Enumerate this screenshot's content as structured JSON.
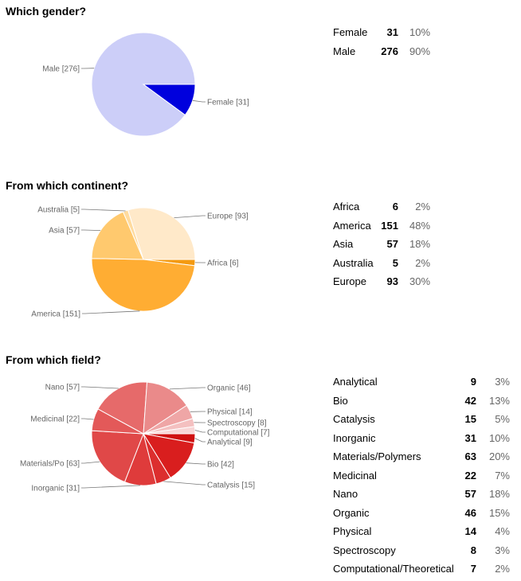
{
  "sections": [
    {
      "question": "Which gender?",
      "rows": [
        {
          "label": "Female",
          "count": "31",
          "pct": "10%"
        },
        {
          "label": "Male",
          "count": "276",
          "pct": "90%"
        }
      ]
    },
    {
      "question": "From which continent?",
      "rows": [
        {
          "label": "Africa",
          "count": "6",
          "pct": "2%"
        },
        {
          "label": "America",
          "count": "151",
          "pct": "48%"
        },
        {
          "label": "Asia",
          "count": "57",
          "pct": "18%"
        },
        {
          "label": "Australia",
          "count": "5",
          "pct": "2%"
        },
        {
          "label": "Europe",
          "count": "93",
          "pct": "30%"
        }
      ]
    },
    {
      "question": "From which field?",
      "rows": [
        {
          "label": "Analytical",
          "count": "9",
          "pct": "3%"
        },
        {
          "label": "Bio",
          "count": "42",
          "pct": "13%"
        },
        {
          "label": "Catalysis",
          "count": "15",
          "pct": "5%"
        },
        {
          "label": "Inorganic",
          "count": "31",
          "pct": "10%"
        },
        {
          "label": "Materials/Polymers",
          "count": "63",
          "pct": "20%"
        },
        {
          "label": "Medicinal",
          "count": "22",
          "pct": "7%"
        },
        {
          "label": "Nano",
          "count": "57",
          "pct": "18%"
        },
        {
          "label": "Organic",
          "count": "46",
          "pct": "15%"
        },
        {
          "label": "Physical",
          "count": "14",
          "pct": "4%"
        },
        {
          "label": "Spectroscopy",
          "count": "8",
          "pct": "3%"
        },
        {
          "label": "Computational/Theoretical",
          "count": "7",
          "pct": "2%"
        }
      ]
    }
  ],
  "chart_data": [
    {
      "type": "pie",
      "title": "Which gender?",
      "slices": [
        {
          "label": "Female",
          "value": 31,
          "display": "Female [31]",
          "color": "#0000dd"
        },
        {
          "label": "Male",
          "value": 276,
          "display": "Male [276]",
          "color": "#cccef8"
        }
      ]
    },
    {
      "type": "pie",
      "title": "From which continent?",
      "slices": [
        {
          "label": "Africa",
          "value": 6,
          "display": "Africa [6]",
          "color": "#f49a10"
        },
        {
          "label": "America",
          "value": 151,
          "display": "America [151]",
          "color": "#ffad33"
        },
        {
          "label": "Asia",
          "value": 57,
          "display": "Asia [57]",
          "color": "#ffc96e"
        },
        {
          "label": "Australia",
          "value": 5,
          "display": "Australia [5]",
          "color": "#ffdb9e"
        },
        {
          "label": "Europe",
          "value": 93,
          "display": "Europe [93]",
          "color": "#ffe9c9"
        }
      ]
    },
    {
      "type": "pie",
      "title": "From which field?",
      "slices": [
        {
          "label": "Analytical",
          "value": 9,
          "display": "Analytical [9]",
          "color": "#cf1010"
        },
        {
          "label": "Bio",
          "value": 42,
          "display": "Bio [42]",
          "color": "#d91e1e"
        },
        {
          "label": "Catalysis",
          "value": 15,
          "display": "Catalysis [15]",
          "color": "#dc2e2e"
        },
        {
          "label": "Inorganic",
          "value": 31,
          "display": "Inorganic [31]",
          "color": "#df3b3b"
        },
        {
          "label": "Materials/Polymers",
          "value": 63,
          "display": "Materials/Po [63]",
          "color": "#e04848"
        },
        {
          "label": "Medicinal",
          "value": 22,
          "display": "Medicinal [22]",
          "color": "#e35959"
        },
        {
          "label": "Nano",
          "value": 57,
          "display": "Nano [57]",
          "color": "#e66a6a"
        },
        {
          "label": "Organic",
          "value": 46,
          "display": "Organic [46]",
          "color": "#ea8a8a"
        },
        {
          "label": "Physical",
          "value": 14,
          "display": "Physical [14]",
          "color": "#efa6a6"
        },
        {
          "label": "Spectroscopy",
          "value": 8,
          "display": "Spectroscopy [8]",
          "color": "#f4c0c0"
        },
        {
          "label": "Computational/Theoretical",
          "value": 7,
          "display": "Computational [7]",
          "color": "#f8d6d6"
        }
      ]
    }
  ]
}
